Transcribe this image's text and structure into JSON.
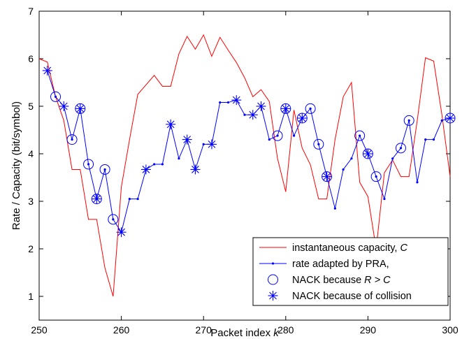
{
  "chart_data": {
    "type": "line",
    "xlabel": "Packet index ",
    "xlabel_var": "k",
    "ylabel": "Rate / Capacity (bit/symbol)",
    "xlim": [
      250,
      300
    ],
    "ylim": [
      0.5,
      7
    ],
    "xticks": [
      "250",
      "260",
      "270",
      "280",
      "290",
      "300"
    ],
    "yticks": [
      "1",
      "2",
      "3",
      "4",
      "5",
      "6",
      "7"
    ],
    "grid": false,
    "legend_position": "bottom-right",
    "series": [
      {
        "name": "instantaneous capacity, ",
        "name_var": "C",
        "color": "#ff0000",
        "marker": "none",
        "x": [
          250,
          251,
          252,
          253,
          254,
          255,
          256,
          257,
          258,
          259,
          260,
          261,
          262,
          263,
          264,
          265,
          266,
          267,
          268,
          269,
          270,
          271,
          272,
          273,
          274,
          275,
          276,
          277,
          278,
          279,
          280,
          281,
          282,
          283,
          284,
          285,
          286,
          287,
          288,
          289,
          290,
          291,
          292,
          293,
          294,
          295,
          296,
          297,
          298,
          299,
          300
        ],
        "y": [
          6.0,
          5.93,
          5.2,
          4.7,
          3.67,
          3.67,
          2.62,
          2.62,
          1.6,
          1.0,
          3.3,
          4.3,
          5.25,
          5.45,
          5.65,
          5.42,
          5.42,
          6.1,
          6.47,
          6.2,
          6.5,
          6.05,
          6.45,
          6.18,
          5.92,
          5.6,
          5.2,
          5.35,
          5.1,
          3.9,
          3.2,
          4.92,
          4.12,
          3.77,
          3.05,
          3.05,
          4.3,
          5.2,
          5.5,
          3.4,
          3.1,
          2.0,
          3.6,
          3.87,
          3.52,
          3.52,
          4.7,
          6.02,
          5.95,
          4.82,
          3.52
        ]
      },
      {
        "name": "rate adapted by PRA, ",
        "name_var": "R",
        "color": "#0000ff",
        "marker": "dot",
        "x": [
          251,
          252,
          253,
          254,
          255,
          256,
          257,
          258,
          259,
          260,
          261,
          262,
          263,
          264,
          265,
          266,
          267,
          268,
          269,
          270,
          271,
          272,
          273,
          274,
          275,
          276,
          277,
          278,
          279,
          280,
          281,
          282,
          283,
          284,
          285,
          286,
          287,
          288,
          289,
          290,
          291,
          292,
          293,
          294,
          295,
          296,
          297,
          298,
          299,
          300
        ],
        "y": [
          5.75,
          5.2,
          5.0,
          4.3,
          4.95,
          3.78,
          3.05,
          3.67,
          2.62,
          2.35,
          3.05,
          3.05,
          3.67,
          3.78,
          3.78,
          4.62,
          3.9,
          4.3,
          3.67,
          4.2,
          4.2,
          5.08,
          5.08,
          5.13,
          4.82,
          4.82,
          5.0,
          4.3,
          4.38,
          4.95,
          4.38,
          4.75,
          4.95,
          4.2,
          3.52,
          2.85,
          3.67,
          3.9,
          4.38,
          4.0,
          3.52,
          3.05,
          3.9,
          4.12,
          4.7,
          3.4,
          4.3,
          4.3,
          4.7,
          4.75
        ]
      },
      {
        "name": "NACK because ",
        "name_expr": "R > C",
        "color": "#0000ff",
        "marker": "circle",
        "x": [
          252,
          254,
          255,
          256,
          257,
          258,
          259,
          279,
          280,
          282,
          283,
          284,
          285,
          289,
          290,
          291,
          294,
          295,
          300
        ],
        "y": [
          5.2,
          4.3,
          4.95,
          3.78,
          3.05,
          3.67,
          2.62,
          4.38,
          4.95,
          4.75,
          4.95,
          4.2,
          3.52,
          4.38,
          4.0,
          3.52,
          4.12,
          4.7,
          4.75
        ]
      },
      {
        "name": "NACK because of collision",
        "color": "#0000ff",
        "marker": "asterisk",
        "x": [
          251,
          253,
          255,
          257,
          260,
          263,
          266,
          268,
          269,
          271,
          274,
          276,
          277,
          280,
          282,
          285,
          290,
          300
        ],
        "y": [
          5.75,
          5.0,
          4.95,
          3.05,
          2.35,
          3.67,
          4.62,
          4.3,
          3.67,
          4.2,
          5.13,
          4.82,
          5.0,
          4.95,
          4.75,
          3.52,
          4.0,
          4.75
        ]
      }
    ]
  }
}
